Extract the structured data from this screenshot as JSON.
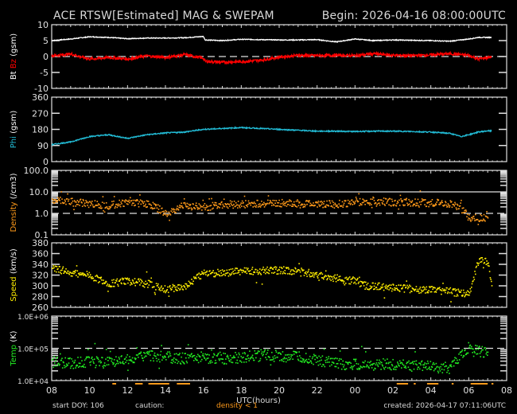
{
  "header": {
    "title": "ACE RTSW[Estimated] MAG & SWEPAM",
    "begin": "Begin: 2026-04-16 08:00:00UTC"
  },
  "footer": {
    "start_doy": "start DOY: 106",
    "caution": "caution:",
    "density_note": "density < 1",
    "created": "created: 2026-04-17 07:11:06UTC",
    "xlabel": "UTC(hours)"
  },
  "colors": {
    "bt": "#ffffff",
    "bz": "#ff0000",
    "phi": "#22bcd6",
    "density": "#ff9a1a",
    "speed": "#ffee00",
    "temp": "#22ee22",
    "axis": "#e0e0e0",
    "caution": "#ff9a1a"
  },
  "chart_data": [
    {
      "type": "line",
      "title": "ACE RTSW[Estimated] MAG & SWEPAM",
      "ylabel_parts": [
        {
          "text": "Bt",
          "color": "#ffffff"
        },
        {
          "text": "Bz",
          "color": "#ff0000"
        },
        {
          "text": "(gsm)",
          "color": "#ffffff"
        }
      ],
      "ylim": [
        -10,
        10
      ],
      "yticks": [
        "10",
        "5",
        "0",
        "-5",
        "-10"
      ],
      "reference_line": 0,
      "x_hours": [
        8,
        9,
        10,
        11,
        12,
        13,
        14,
        15,
        16,
        16.1,
        17,
        18,
        19,
        20,
        21,
        22,
        23,
        24,
        25,
        26,
        27,
        28,
        29,
        30,
        30.5,
        31,
        31.2
      ],
      "series": [
        {
          "name": "Bt",
          "values": [
            5.0,
            5.5,
            6.2,
            6.0,
            5.6,
            5.8,
            5.8,
            5.9,
            6.3,
            5.2,
            5.0,
            5.4,
            5.3,
            5.2,
            5.2,
            5.3,
            4.6,
            5.5,
            5.0,
            5.2,
            5.1,
            5.0,
            4.8,
            5.5,
            6.0,
            6.0,
            6.0
          ]
        },
        {
          "name": "Bz",
          "values": [
            0.2,
            0.8,
            -0.8,
            -0.3,
            -0.8,
            0.2,
            -0.3,
            0.6,
            -0.5,
            -1.5,
            -1.8,
            -1.6,
            -1.2,
            -0.2,
            0.4,
            0.3,
            0.4,
            0.3,
            0.9,
            0.4,
            0.3,
            0.5,
            0.9,
            0.4,
            -0.8,
            -0.3,
            -0.2
          ]
        }
      ]
    },
    {
      "type": "line",
      "ylabel_parts": [
        {
          "text": "Phi",
          "color": "#22bcd6"
        },
        {
          "text": "(gsm)",
          "color": "#ffffff"
        }
      ],
      "ylim": [
        0,
        360
      ],
      "yticks": [
        "360",
        "270",
        "180",
        "90",
        "0"
      ],
      "x_hours": [
        8,
        9,
        10,
        11,
        12,
        13,
        14,
        15,
        16,
        17,
        18,
        19,
        20,
        21,
        22,
        23,
        24,
        25,
        26,
        27,
        28,
        29,
        29.6,
        30,
        30.5,
        31,
        31.2
      ],
      "series": [
        {
          "name": "Phi",
          "values": [
            95,
            110,
            140,
            150,
            130,
            150,
            160,
            165,
            180,
            185,
            190,
            185,
            180,
            175,
            170,
            170,
            168,
            170,
            170,
            168,
            165,
            158,
            140,
            150,
            165,
            172,
            170
          ]
        }
      ]
    },
    {
      "type": "scatter",
      "ylabel_parts": [
        {
          "text": "Density",
          "color": "#ff9a1a"
        },
        {
          "text": "(/cm3)",
          "color": "#ffffff"
        }
      ],
      "yscale": "log",
      "ylim": [
        0.1,
        100
      ],
      "yticks": [
        "100.0",
        "10.0",
        "1.0",
        "0.1"
      ],
      "reference_lines": [
        10,
        1
      ],
      "x_hours": [
        8,
        9,
        10,
        11,
        12,
        13,
        14,
        15,
        16,
        17,
        18,
        19,
        20,
        21,
        22,
        23,
        24,
        25,
        26,
        27,
        28,
        29,
        30,
        31
      ],
      "series": [
        {
          "name": "Density",
          "values": [
            4.5,
            3.5,
            3.0,
            2.5,
            3.5,
            3.0,
            0.9,
            2.5,
            2.0,
            2.8,
            2.8,
            3.0,
            3.2,
            3.0,
            3.0,
            2.8,
            3.5,
            3.8,
            3.5,
            3.5,
            3.2,
            3.0,
            0.6,
            0.7
          ]
        }
      ]
    },
    {
      "type": "scatter",
      "ylabel_parts": [
        {
          "text": "Speed",
          "color": "#ffee00"
        },
        {
          "text": "(km/s)",
          "color": "#ffffff"
        }
      ],
      "ylim": [
        260,
        380
      ],
      "yticks": [
        "380",
        "360",
        "340",
        "320",
        "300",
        "280",
        "260"
      ],
      "x_hours": [
        8,
        9,
        10,
        11,
        12,
        13,
        14,
        15,
        16,
        17,
        18,
        19,
        20,
        21,
        22,
        23,
        24,
        24.5,
        25,
        26,
        27,
        28,
        29,
        30,
        30.5,
        31,
        31.2
      ],
      "series": [
        {
          "name": "Speed",
          "values": [
            335,
            325,
            320,
            305,
            310,
            305,
            295,
            300,
            325,
            325,
            328,
            330,
            330,
            328,
            322,
            315,
            310,
            302,
            300,
            298,
            295,
            293,
            290,
            285,
            350,
            345,
            300
          ]
        }
      ]
    },
    {
      "type": "scatter",
      "ylabel_parts": [
        {
          "text": "Temp",
          "color": "#22ee22"
        },
        {
          "text": "(K)",
          "color": "#ffffff"
        }
      ],
      "yscale": "log",
      "ylim": [
        10000,
        1000000
      ],
      "yticks": [
        "1.0E+06",
        "1.0E+05",
        "1.0E+04"
      ],
      "reference_line": 100000,
      "x_hours": [
        8,
        9,
        10,
        11,
        12,
        13,
        14,
        15,
        16,
        17,
        18,
        19,
        20,
        21,
        22,
        23,
        24,
        25,
        26,
        27,
        28,
        29,
        30,
        31
      ],
      "series": [
        {
          "name": "Temp",
          "values": [
            40000,
            35000,
            40000,
            38000,
            45000,
            60000,
            55000,
            50000,
            55000,
            50000,
            55000,
            65000,
            60000,
            55000,
            45000,
            35000,
            32000,
            33000,
            33000,
            30000,
            28000,
            25000,
            90000,
            80000
          ]
        }
      ]
    },
    {
      "xlabel": "UTC(hours)",
      "xticks": [
        "08",
        "10",
        "12",
        "14",
        "16",
        "18",
        "20",
        "22",
        "00",
        "02",
        "04",
        "06",
        "08"
      ]
    }
  ]
}
